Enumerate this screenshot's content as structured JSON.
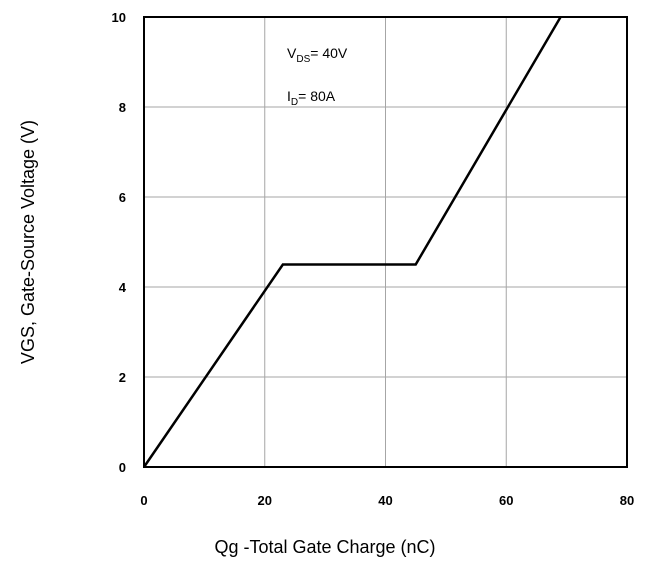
{
  "chart_data": {
    "type": "line",
    "xlabel": "Qg -Total Gate Charge (nC)",
    "ylabel": "VGS, Gate-Source Voltage (V)",
    "xlim": [
      0,
      80
    ],
    "ylim": [
      0,
      10
    ],
    "x_ticks": [
      "0",
      "20",
      "40",
      "60",
      "80"
    ],
    "y_ticks": [
      "0",
      "2",
      "4",
      "6",
      "8",
      "10"
    ],
    "grid": true,
    "annotations": [
      {
        "main": "V",
        "sub": "DS",
        "rest": "= 40V"
      },
      {
        "main": "I",
        "sub": "D",
        "rest": "= 80A"
      }
    ],
    "series": [
      {
        "x": [
          0,
          23,
          45,
          69
        ],
        "y": [
          0,
          4.5,
          4.5,
          10
        ]
      }
    ],
    "colors": {
      "line": "#000000",
      "grid": "#a6a6a6",
      "frame": "#000000"
    }
  }
}
